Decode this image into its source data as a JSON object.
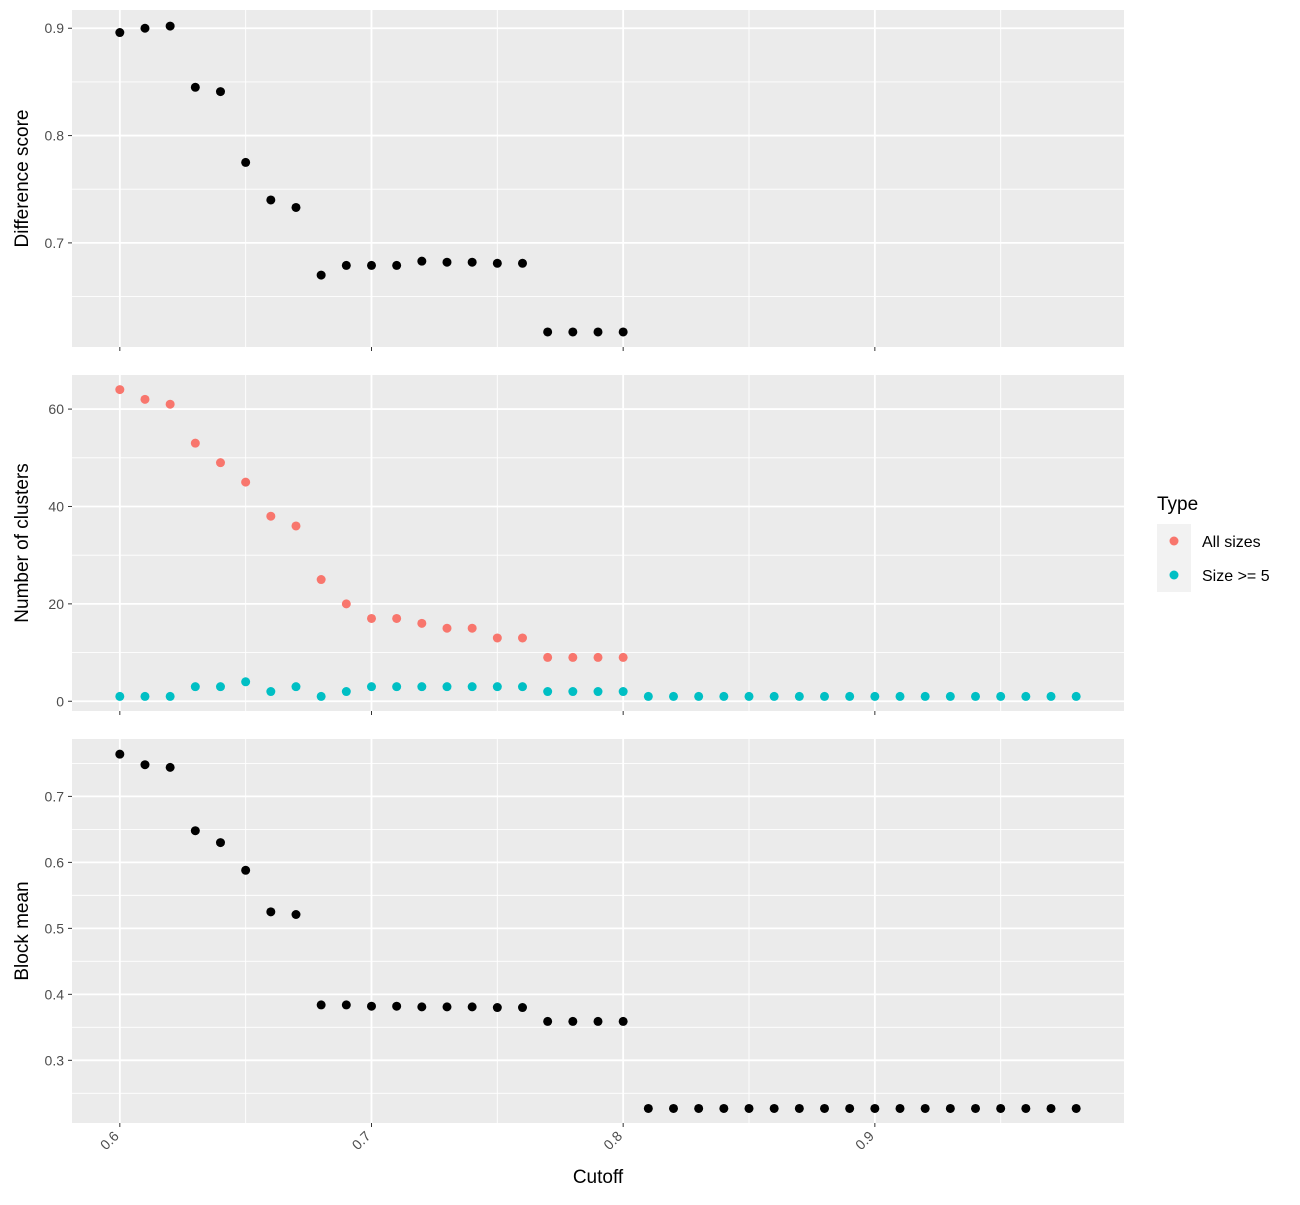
{
  "chart_data": {
    "type": "scatter",
    "xlabel": "Cutoff",
    "x_ticks": [
      "0.6",
      "0.7",
      "0.8",
      "0.9"
    ],
    "xlim": [
      0.581,
      0.999
    ],
    "panels": [
      {
        "ylabel": "Difference score",
        "ylim": [
          0.603,
          0.917
        ],
        "y_ticks": [
          "0.7",
          "0.8",
          "0.9"
        ],
        "series": [
          {
            "color": "#000000",
            "x": [
              0.6,
              0.61,
              0.62,
              0.63,
              0.64,
              0.65,
              0.66,
              0.67,
              0.68,
              0.69,
              0.7,
              0.71,
              0.72,
              0.73,
              0.74,
              0.75,
              0.76,
              0.77,
              0.78,
              0.79,
              0.8
            ],
            "y": [
              0.896,
              0.9,
              0.902,
              0.845,
              0.841,
              0.775,
              0.74,
              0.733,
              0.67,
              0.679,
              0.679,
              0.679,
              0.683,
              0.682,
              0.682,
              0.681,
              0.681,
              0.617,
              0.617,
              0.617,
              0.617
            ]
          }
        ]
      },
      {
        "ylabel": "Number of clusters",
        "ylim": [
          -2,
          67
        ],
        "y_ticks": [
          "0",
          "20",
          "40",
          "60"
        ],
        "series": [
          {
            "name": "All sizes",
            "color": "#F8766D",
            "x": [
              0.6,
              0.61,
              0.62,
              0.63,
              0.64,
              0.65,
              0.66,
              0.67,
              0.68,
              0.69,
              0.7,
              0.71,
              0.72,
              0.73,
              0.74,
              0.75,
              0.76,
              0.77,
              0.78,
              0.79,
              0.8
            ],
            "y": [
              64,
              62,
              61,
              53,
              49,
              45,
              38,
              36,
              25,
              20,
              17,
              17,
              16,
              15,
              15,
              13,
              13,
              9,
              9,
              9,
              9
            ]
          },
          {
            "name": "Size >= 5",
            "color": "#00BFC4",
            "x": [
              0.6,
              0.61,
              0.62,
              0.63,
              0.64,
              0.65,
              0.66,
              0.67,
              0.68,
              0.69,
              0.7,
              0.71,
              0.72,
              0.73,
              0.74,
              0.75,
              0.76,
              0.77,
              0.78,
              0.79,
              0.8,
              0.81,
              0.82,
              0.83,
              0.84,
              0.85,
              0.86,
              0.87,
              0.88,
              0.89,
              0.9,
              0.91,
              0.92,
              0.93,
              0.94,
              0.95,
              0.96,
              0.97,
              0.98
            ],
            "y": [
              1,
              1,
              1,
              3,
              3,
              4,
              2,
              3,
              1,
              2,
              3,
              3,
              3,
              3,
              3,
              3,
              3,
              2,
              2,
              2,
              2,
              1,
              1,
              1,
              1,
              1,
              1,
              1,
              1,
              1,
              1,
              1,
              1,
              1,
              1,
              1,
              1,
              1,
              1
            ]
          }
        ]
      },
      {
        "ylabel": "Block mean",
        "ylim": [
          0.205,
          0.787
        ],
        "y_ticks": [
          "0.3",
          "0.4",
          "0.5",
          "0.6",
          "0.7"
        ],
        "series": [
          {
            "color": "#000000",
            "x": [
              0.6,
              0.61,
              0.62,
              0.63,
              0.64,
              0.65,
              0.66,
              0.67,
              0.68,
              0.69,
              0.7,
              0.71,
              0.72,
              0.73,
              0.74,
              0.75,
              0.76,
              0.77,
              0.78,
              0.79,
              0.8,
              0.81,
              0.82,
              0.83,
              0.84,
              0.85,
              0.86,
              0.87,
              0.88,
              0.89,
              0.9,
              0.91,
              0.92,
              0.93,
              0.94,
              0.95,
              0.96,
              0.97,
              0.98
            ],
            "y": [
              0.764,
              0.748,
              0.744,
              0.648,
              0.63,
              0.588,
              0.525,
              0.521,
              0.384,
              0.384,
              0.382,
              0.382,
              0.381,
              0.381,
              0.381,
              0.38,
              0.38,
              0.359,
              0.359,
              0.359,
              0.359,
              0.227,
              0.227,
              0.227,
              0.227,
              0.227,
              0.227,
              0.227,
              0.227,
              0.227,
              0.227,
              0.227,
              0.227,
              0.227,
              0.227,
              0.227,
              0.227,
              0.227,
              0.227
            ]
          }
        ]
      }
    ],
    "legend": {
      "title": "Type",
      "position": "right",
      "entries": [
        {
          "label": "All sizes",
          "color": "#F8766D"
        },
        {
          "label": "Size >= 5",
          "color": "#00BFC4"
        }
      ]
    },
    "grid": true,
    "panel_background": "#EBEBEB"
  }
}
